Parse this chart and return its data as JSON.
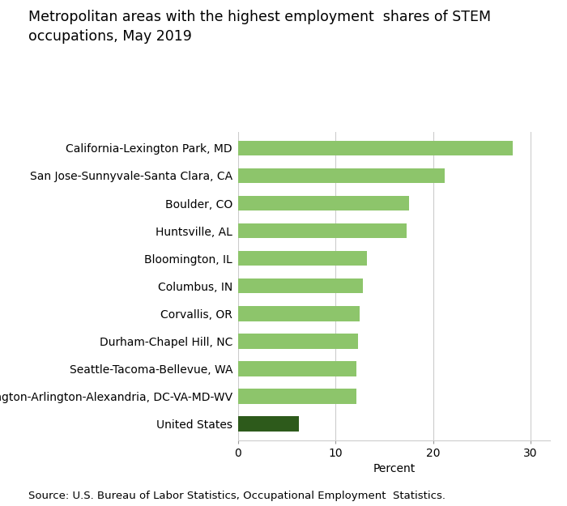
{
  "title": "Metropolitan areas with the highest employment  shares of STEM\noccupations, May 2019",
  "categories": [
    "United States",
    "Washington-Arlington-Alexandria, DC-VA-MD-WV",
    "Seattle-Tacoma-Bellevue, WA",
    "Durham-Chapel Hill, NC",
    "Corvallis, OR",
    "Columbus, IN",
    "Bloomington, IL",
    "Huntsville, AL",
    "Boulder, CO",
    "San Jose-Sunnyvale-Santa Clara, CA",
    "California-Lexington Park, MD"
  ],
  "values": [
    6.2,
    12.1,
    12.1,
    12.3,
    12.5,
    12.8,
    13.2,
    17.3,
    17.5,
    21.2,
    28.2
  ],
  "bar_colors": [
    "#2d5a1b",
    "#8dc56b",
    "#8dc56b",
    "#8dc56b",
    "#8dc56b",
    "#8dc56b",
    "#8dc56b",
    "#8dc56b",
    "#8dc56b",
    "#8dc56b",
    "#8dc56b"
  ],
  "xlabel": "Percent",
  "xlim": [
    0,
    32
  ],
  "xticks": [
    0,
    10,
    20,
    30
  ],
  "source_text": "Source: U.S. Bureau of Labor Statistics, Occupational Employment  Statistics.",
  "background_color": "#ffffff",
  "grid_color": "#cccccc",
  "title_fontsize": 12.5,
  "axis_fontsize": 10,
  "label_fontsize": 10
}
